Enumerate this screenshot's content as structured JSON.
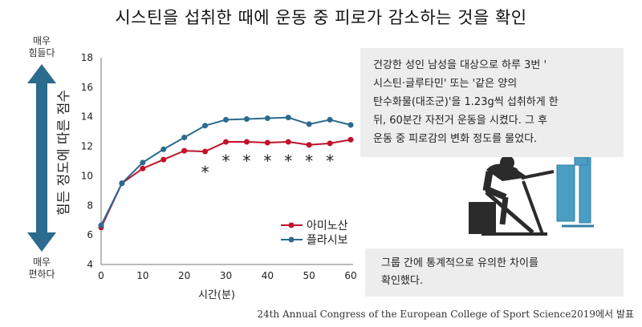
{
  "title": "시스틴을 섭취한 때에 운동 중 피로가 감소하는 것을 확인",
  "scale": {
    "top_line1": "매우",
    "top_line2": "힘들다",
    "bottom_line1": "매우",
    "bottom_line2": "편하다"
  },
  "info_box": {
    "lines": [
      "건강한 성인 남성을 대상으로 하루 3번 '",
      "시스틴·글루타민' 또는 '같은 양의",
      "탄수화물(대조군)'을 1.23g씩 섭취하게 한",
      "뒤, 60분간 자전거 운동을 시켰다. 그 후",
      "운동 중 피로감의 변화 정도를 물었다."
    ]
  },
  "result_box": {
    "lines": [
      "그룹 간에 통계적으로 유의한 차이를",
      "확인했다."
    ]
  },
  "source": "24th Annual Congress of the European College of Sport Science2019에서 발표",
  "illustration": {
    "icon": "cyclist-on-ergometer-icon"
  },
  "colors": {
    "amino": "#c0122a",
    "placebo": "#2a6b8e",
    "arrow": "#2a6b8e",
    "box": "#ededed"
  },
  "chart_data": {
    "type": "line",
    "title": "",
    "xlabel": "시간(분)",
    "ylabel": "힘든 정도에 따른 점수",
    "x": [
      0,
      5,
      10,
      15,
      20,
      25,
      30,
      35,
      40,
      45,
      50,
      55,
      60
    ],
    "xticks": [
      0,
      10,
      20,
      30,
      40,
      50,
      60
    ],
    "yticks": [
      4,
      6,
      8,
      10,
      12,
      14,
      16,
      18
    ],
    "xlim": [
      0,
      60
    ],
    "ylim": [
      4,
      18
    ],
    "series": [
      {
        "name": "아미노산",
        "color": "#c0122a",
        "values": [
          6.5,
          9.5,
          10.5,
          11.1,
          11.7,
          11.65,
          12.3,
          12.3,
          12.25,
          12.3,
          12.1,
          12.2,
          12.45
        ]
      },
      {
        "name": "플라시보",
        "color": "#2a6b8e",
        "values": [
          6.65,
          9.5,
          10.9,
          11.8,
          12.6,
          13.4,
          13.8,
          13.85,
          13.9,
          13.95,
          13.5,
          13.8,
          13.45
        ]
      }
    ],
    "significance_marker": "*",
    "significant_x": [
      25,
      30,
      35,
      40,
      45,
      50,
      55
    ],
    "legend_position": "bottom-right"
  }
}
